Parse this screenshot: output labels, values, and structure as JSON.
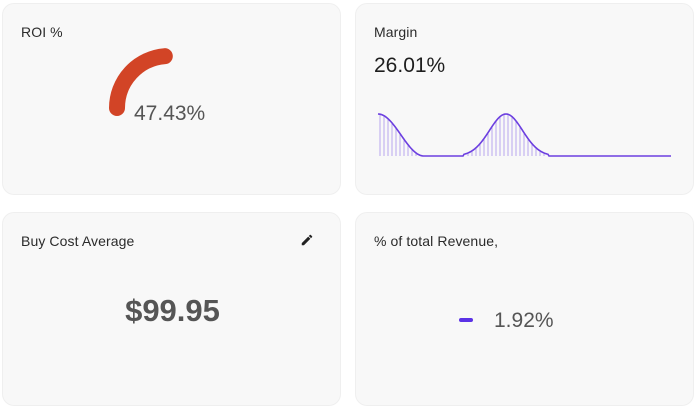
{
  "colors": {
    "gauge": "#d24426",
    "accent": "#6c3fe0",
    "rev_bar": "#5b32e6"
  },
  "cards": {
    "roi": {
      "title": "ROI %",
      "value": "47.43%",
      "gauge_fraction": 0.4743
    },
    "margin": {
      "title": "Margin",
      "value": "26.01%"
    },
    "buy_cost": {
      "title": "Buy Cost Average",
      "value": "$99.95",
      "action_icon": "pencil-icon"
    },
    "revenue": {
      "title": "% of total Revenue,",
      "value": "1.92%"
    }
  }
}
